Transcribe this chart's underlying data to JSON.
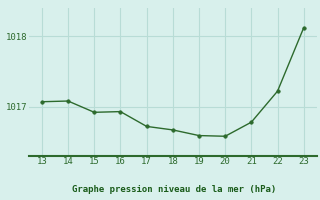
{
  "x": [
    13,
    14,
    15,
    16,
    17,
    18,
    19,
    20,
    21,
    22,
    23
  ],
  "y": [
    1017.07,
    1017.08,
    1016.92,
    1016.93,
    1016.72,
    1016.67,
    1016.59,
    1016.58,
    1016.78,
    1017.22,
    1018.12
  ],
  "line_color": "#2d6a2d",
  "marker_color": "#2d6a2d",
  "bg_color": "#d8f0ec",
  "grid_color": "#b8dcd6",
  "xlabel": "Graphe pression niveau de la mer (hPa)",
  "xlabel_color": "#1a5c1a",
  "tick_color": "#2d6a2d",
  "separator_color": "#2d6a2d",
  "xticks": [
    13,
    14,
    15,
    16,
    17,
    18,
    19,
    20,
    21,
    22,
    23
  ],
  "yticks": [
    1017,
    1018
  ],
  "ylim": [
    1016.3,
    1018.4
  ],
  "xlim": [
    12.5,
    23.5
  ]
}
